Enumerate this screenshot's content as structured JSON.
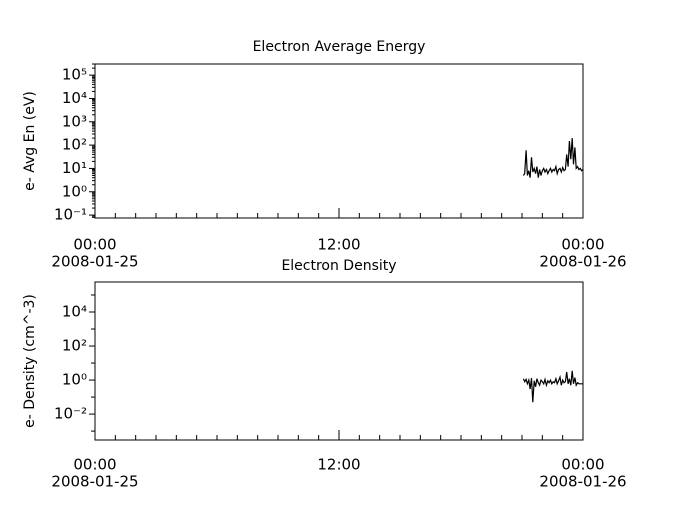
{
  "chart_data": [
    {
      "type": "line",
      "title": "Electron Average Energy",
      "y_label": "e- Avg En (eV)",
      "log_y": true,
      "log_minor_ticks": true,
      "color": "#000000",
      "xlim": [
        "2008-01-25T00:00",
        "2008-01-26T00:00"
      ],
      "xticks": [
        {
          "value": "2008-01-25T00:00",
          "label": [
            "00:00",
            "2008-01-25"
          ]
        },
        {
          "value": "2008-01-25T12:00",
          "label": [
            "12:00"
          ]
        },
        {
          "value": "2008-01-26T00:00",
          "label": [
            "00:00",
            "2008-01-26"
          ]
        }
      ],
      "xminor_step_hours": 1,
      "ylim": [
        0.075,
        300000
      ],
      "yticks": [
        {
          "value": 0.1,
          "label": "10⁻¹"
        },
        {
          "value": 1,
          "label": "10⁰"
        },
        {
          "value": 10,
          "label": "10¹"
        },
        {
          "value": 100,
          "label": "10²"
        },
        {
          "value": 1000,
          "label": "10³"
        },
        {
          "value": 10000,
          "label": "10⁴"
        },
        {
          "value": 100000,
          "label": "10⁵"
        }
      ],
      "x": [
        "2008-01-25T21:04",
        "2008-01-25T21:08",
        "2008-01-25T21:12",
        "2008-01-25T21:16",
        "2008-01-25T21:20",
        "2008-01-25T21:24",
        "2008-01-25T21:28",
        "2008-01-25T21:32",
        "2008-01-25T21:36",
        "2008-01-25T21:40",
        "2008-01-25T21:44",
        "2008-01-25T21:48",
        "2008-01-25T21:52",
        "2008-01-25T21:56",
        "2008-01-25T22:00",
        "2008-01-25T22:04",
        "2008-01-25T22:08",
        "2008-01-25T22:12",
        "2008-01-25T22:16",
        "2008-01-25T22:20",
        "2008-01-25T22:24",
        "2008-01-25T22:28",
        "2008-01-25T22:32",
        "2008-01-25T22:36",
        "2008-01-25T22:40",
        "2008-01-25T22:44",
        "2008-01-25T22:48",
        "2008-01-25T22:52",
        "2008-01-25T22:56",
        "2008-01-25T23:00",
        "2008-01-25T23:04",
        "2008-01-25T23:08",
        "2008-01-25T23:12",
        "2008-01-25T23:16",
        "2008-01-25T23:20",
        "2008-01-25T23:24",
        "2008-01-25T23:28",
        "2008-01-25T23:32",
        "2008-01-25T23:36",
        "2008-01-25T23:40",
        "2008-01-25T23:44",
        "2008-01-25T23:48",
        "2008-01-25T23:52",
        "2008-01-25T23:56",
        "2008-01-26T00:00"
      ],
      "values": [
        5,
        6,
        60,
        5,
        8,
        4,
        30,
        7,
        10,
        6,
        12,
        4,
        9,
        5,
        8,
        10,
        7,
        9,
        6,
        8,
        10,
        7,
        9,
        8,
        12,
        6,
        9,
        10,
        7,
        11,
        8,
        9,
        40,
        12,
        150,
        25,
        200,
        15,
        80,
        10,
        12,
        9,
        10,
        8,
        9
      ]
    },
    {
      "type": "line",
      "title": "Electron Density",
      "y_label": "e- Density (cm^-3)",
      "log_y": true,
      "log_minor_ticks": false,
      "color": "#000000",
      "xlim": [
        "2008-01-25T00:00",
        "2008-01-26T00:00"
      ],
      "xticks": [
        {
          "value": "2008-01-25T00:00",
          "label": [
            "00:00",
            "2008-01-25"
          ]
        },
        {
          "value": "2008-01-25T12:00",
          "label": [
            "12:00"
          ]
        },
        {
          "value": "2008-01-26T00:00",
          "label": [
            "00:00",
            "2008-01-26"
          ]
        }
      ],
      "xminor_step_hours": 1,
      "ylim": [
        0.0003,
        580000
      ],
      "yticks": [
        {
          "value": 0.01,
          "label": "10⁻²"
        },
        {
          "value": 1,
          "label": "10⁰"
        },
        {
          "value": 100,
          "label": "10²"
        },
        {
          "value": 10000,
          "label": "10⁴"
        }
      ],
      "yminorticks": [
        0.001,
        0.1,
        10,
        1000,
        100000
      ],
      "x": [
        "2008-01-25T21:04",
        "2008-01-25T21:08",
        "2008-01-25T21:12",
        "2008-01-25T21:16",
        "2008-01-25T21:20",
        "2008-01-25T21:24",
        "2008-01-25T21:28",
        "2008-01-25T21:32",
        "2008-01-25T21:36",
        "2008-01-25T21:40",
        "2008-01-25T21:44",
        "2008-01-25T21:48",
        "2008-01-25T21:52",
        "2008-01-25T21:56",
        "2008-01-25T22:00",
        "2008-01-25T22:04",
        "2008-01-25T22:08",
        "2008-01-25T22:12",
        "2008-01-25T22:16",
        "2008-01-25T22:20",
        "2008-01-25T22:24",
        "2008-01-25T22:28",
        "2008-01-25T22:32",
        "2008-01-25T22:36",
        "2008-01-25T22:40",
        "2008-01-25T22:44",
        "2008-01-25T22:48",
        "2008-01-25T22:52",
        "2008-01-25T22:56",
        "2008-01-25T23:00",
        "2008-01-25T23:04",
        "2008-01-25T23:08",
        "2008-01-25T23:12",
        "2008-01-25T23:16",
        "2008-01-25T23:20",
        "2008-01-25T23:24",
        "2008-01-25T23:28",
        "2008-01-25T23:32",
        "2008-01-25T23:36",
        "2008-01-25T23:40",
        "2008-01-25T23:44",
        "2008-01-25T23:48",
        "2008-01-25T23:52",
        "2008-01-25T23:56",
        "2008-01-26T00:00"
      ],
      "values": [
        1.2,
        0.8,
        1.1,
        0.6,
        1.0,
        0.3,
        1.3,
        0.05,
        0.9,
        0.4,
        1.2,
        0.7,
        0.5,
        1.0,
        0.8,
        0.6,
        1.1,
        0.5,
        0.9,
        0.7,
        1.0,
        0.6,
        0.8,
        0.7,
        1.2,
        0.6,
        0.9,
        1.5,
        0.5,
        1.0,
        0.7,
        0.8,
        3.0,
        0.6,
        1.2,
        0.5,
        3.5,
        0.6,
        1.4,
        0.5,
        0.7,
        0.6,
        0.6,
        0.6,
        0.6
      ]
    }
  ]
}
